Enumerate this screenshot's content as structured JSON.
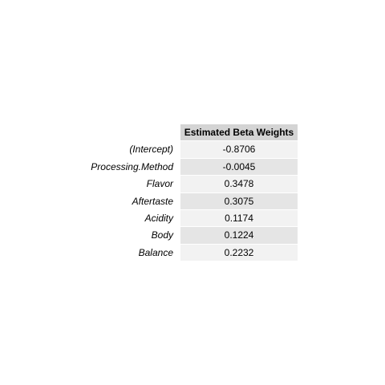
{
  "chart_data": {
    "type": "table",
    "header": "Estimated Beta Weights",
    "rows": [
      {
        "label": "(Intercept)",
        "value": "-0.8706"
      },
      {
        "label": "Processing.Method",
        "value": "-0.0045"
      },
      {
        "label": "Flavor",
        "value": "0.3478"
      },
      {
        "label": "Aftertaste",
        "value": "0.3075"
      },
      {
        "label": "Acidity",
        "value": "0.1174"
      },
      {
        "label": "Body",
        "value": "0.1224"
      },
      {
        "label": "Balance",
        "value": "0.2232"
      }
    ]
  },
  "colors": {
    "header_bg": "#d4d4d4",
    "row_bg_odd": "#f2f2f2",
    "row_bg_even": "#e5e5e5",
    "text": "#000000"
  }
}
